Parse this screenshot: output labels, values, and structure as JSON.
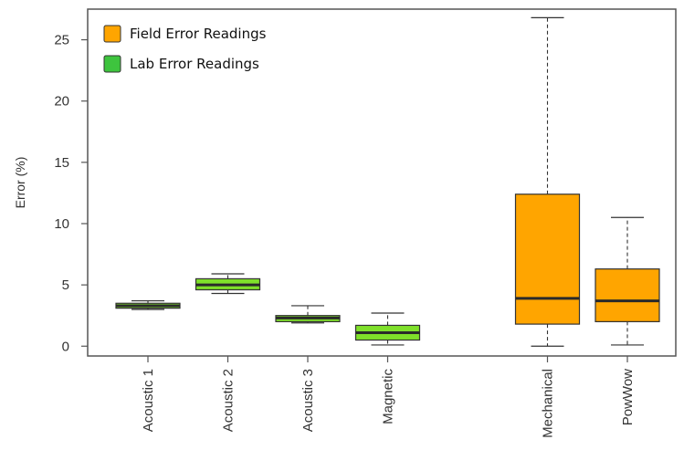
{
  "chart_data": {
    "type": "boxplot",
    "ylabel": "Error (%)",
    "ylim": [
      -0.8,
      27.5
    ],
    "yticks": [
      0,
      5,
      10,
      15,
      20,
      25
    ],
    "legend": {
      "placement": "top-left",
      "entries": [
        {
          "label": "Field Error Readings",
          "color": "#FFA500"
        },
        {
          "label": "Lab Error Readings",
          "color": "#3EC43E"
        }
      ]
    },
    "colors": {
      "field": "#FFA500",
      "lab": "#3EC43E",
      "lab_box": "#7FE02A",
      "median": "#2a2a2a"
    },
    "boxes": [
      {
        "category": "Acoustic 1",
        "group": "lab",
        "slot": 1,
        "min": 3.0,
        "q1": 3.1,
        "median": 3.3,
        "q3": 3.5,
        "max": 3.7
      },
      {
        "category": "Acoustic 2",
        "group": "lab",
        "slot": 2,
        "min": 4.3,
        "q1": 4.6,
        "median": 5.0,
        "q3": 5.5,
        "max": 5.9
      },
      {
        "category": "Acoustic 3",
        "group": "lab",
        "slot": 3,
        "min": 1.9,
        "q1": 2.0,
        "median": 2.3,
        "q3": 2.5,
        "max": 3.3
      },
      {
        "category": "Magnetic",
        "group": "lab",
        "slot": 4,
        "min": 0.1,
        "q1": 0.5,
        "median": 1.1,
        "q3": 1.7,
        "max": 2.7
      },
      {
        "category": "Mechanical",
        "group": "field",
        "slot": 6,
        "min": 0.0,
        "q1": 1.8,
        "median": 3.9,
        "q3": 12.4,
        "max": 26.8
      },
      {
        "category": "PowWow",
        "group": "field",
        "slot": 7,
        "min": 0.1,
        "q1": 2.0,
        "median": 3.7,
        "q3": 6.3,
        "max": 10.5
      }
    ]
  }
}
